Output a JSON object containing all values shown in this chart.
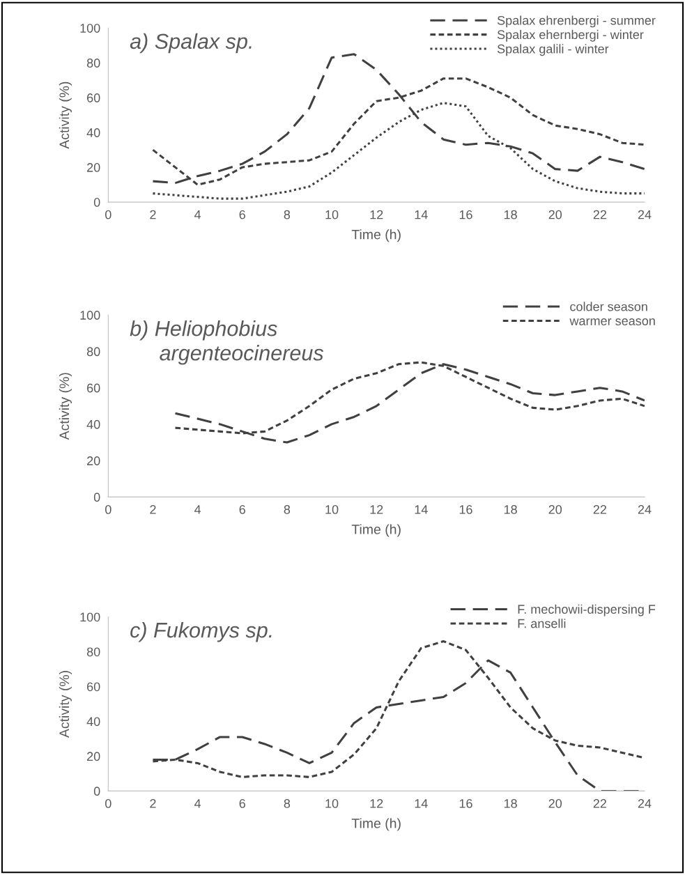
{
  "chart_data": [
    {
      "type": "line",
      "title": "a) Spalax sp.",
      "xlabel": "Time (h)",
      "ylabel": "Activity (%)",
      "x": [
        2,
        3,
        4,
        5,
        6,
        7,
        8,
        9,
        10,
        11,
        12,
        13,
        14,
        15,
        16,
        17,
        18,
        19,
        20,
        21,
        22,
        23,
        24
      ],
      "xlim": [
        0,
        24
      ],
      "xticks": [
        0,
        2,
        4,
        6,
        8,
        10,
        12,
        14,
        16,
        18,
        20,
        22,
        24
      ],
      "ylim": [
        0,
        100
      ],
      "yticks": [
        0,
        20,
        40,
        60,
        80,
        100
      ],
      "grid": false,
      "legend": "top right",
      "marker": "none",
      "series": [
        {
          "name": "Spalax ehrenbergi - summer",
          "color": "#404040",
          "line_style": "dashed",
          "values": [
            12,
            11,
            15,
            18,
            22,
            29,
            39,
            54,
            83,
            85,
            76,
            62,
            46,
            36,
            33,
            34,
            32,
            28,
            19,
            18,
            26,
            23,
            19
          ]
        },
        {
          "name": "Spalax ehernbergi - winter",
          "color": "#404040",
          "line_style": "dashed",
          "values": [
            30,
            20,
            10,
            13,
            20,
            22,
            23,
            24,
            29,
            45,
            58,
            60,
            64,
            71,
            71,
            66,
            60,
            50,
            44,
            42,
            39,
            34,
            33
          ]
        },
        {
          "name": "Spalax galili - winter",
          "color": "#404040",
          "line_style": "dotted",
          "values": [
            5,
            4,
            3,
            2,
            2,
            4,
            6,
            9,
            17,
            27,
            37,
            46,
            53,
            57,
            55,
            38,
            31,
            19,
            12,
            8,
            6,
            5,
            5
          ]
        }
      ]
    },
    {
      "type": "line",
      "title": "b) Heliophobius\n     argenteocinereus",
      "xlabel": "Time (h)",
      "ylabel": "Activity (%)",
      "x": [
        3,
        4,
        5,
        6,
        7,
        8,
        9,
        10,
        11,
        12,
        13,
        14,
        15,
        16,
        17,
        18,
        19,
        20,
        21,
        22,
        23,
        24
      ],
      "xlim": [
        0,
        24
      ],
      "xticks": [
        0,
        2,
        4,
        6,
        8,
        10,
        12,
        14,
        16,
        18,
        20,
        22,
        24
      ],
      "ylim": [
        0,
        100
      ],
      "yticks": [
        0,
        20,
        40,
        60,
        80,
        100
      ],
      "grid": false,
      "legend": "top right",
      "marker": "none",
      "series": [
        {
          "name": "colder season",
          "color": "#404040",
          "line_style": "dashed",
          "values": [
            46,
            43,
            40,
            36,
            32,
            30,
            34,
            40,
            44,
            50,
            59,
            68,
            73,
            70,
            66,
            62,
            57,
            56,
            58,
            60,
            58,
            53
          ]
        },
        {
          "name": "warmer season",
          "color": "#404040",
          "line_style": "dashed",
          "values": [
            38,
            37,
            36,
            35,
            36,
            42,
            50,
            59,
            65,
            68,
            73,
            74,
            72,
            66,
            60,
            54,
            49,
            48,
            50,
            53,
            54,
            50
          ]
        }
      ]
    },
    {
      "type": "line",
      "title": "c) Fukomys sp.",
      "xlabel": "Time (h)",
      "ylabel": "Activity (%)",
      "x": [
        2,
        3,
        4,
        5,
        6,
        7,
        8,
        9,
        10,
        11,
        12,
        13,
        14,
        15,
        16,
        17,
        18,
        19,
        20,
        21,
        22,
        23,
        24
      ],
      "xlim": [
        0,
        24
      ],
      "xticks": [
        0,
        2,
        4,
        6,
        8,
        10,
        12,
        14,
        16,
        18,
        20,
        22,
        24
      ],
      "ylim": [
        0,
        100
      ],
      "yticks": [
        0,
        20,
        40,
        60,
        80,
        100
      ],
      "grid": false,
      "legend": "top right",
      "marker": "none",
      "series": [
        {
          "name": "F. mechowii-dispersing F",
          "color": "#404040",
          "line_style": "dashed",
          "values": [
            18,
            18,
            24,
            31,
            31,
            27,
            22,
            16,
            22,
            39,
            48,
            50,
            52,
            54,
            62,
            75,
            68,
            48,
            28,
            9,
            0,
            0,
            0
          ]
        },
        {
          "name": "F. anselli",
          "color": "#404040",
          "line_style": "dashed",
          "values": [
            17,
            18,
            16,
            11,
            8,
            9,
            9,
            8,
            11,
            21,
            36,
            63,
            82,
            86,
            81,
            65,
            48,
            36,
            29,
            26,
            25,
            22,
            19
          ]
        }
      ]
    }
  ]
}
